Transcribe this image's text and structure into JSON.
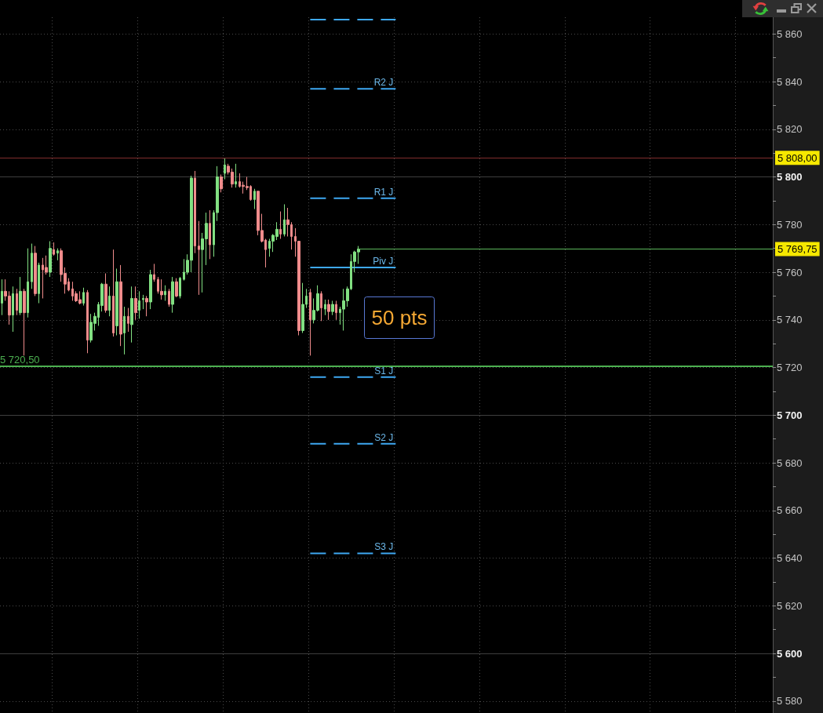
{
  "chart_data": {
    "type": "candlestick",
    "categories": [
      null,
      null,
      null,
      null,
      null,
      null,
      null,
      null,
      null,
      null,
      null,
      null,
      null,
      null,
      null,
      null,
      null,
      null,
      null,
      null,
      null,
      null,
      null,
      null,
      null,
      null,
      null,
      null,
      null,
      null,
      null,
      null,
      null,
      null,
      null,
      null,
      null,
      null,
      null,
      null,
      null,
      null,
      null,
      null,
      null,
      null,
      null,
      null,
      null,
      null,
      null,
      null,
      null,
      null,
      null,
      null,
      null,
      null,
      null,
      null,
      null,
      null,
      null,
      null,
      null,
      null,
      null,
      null,
      null,
      null,
      null,
      null,
      null,
      null,
      null,
      null,
      null,
      null,
      null,
      null,
      null,
      null,
      null,
      null,
      null,
      null,
      null,
      null,
      null,
      null,
      null,
      null,
      null,
      null,
      null,
      null,
      null,
      null,
      null,
      null,
      null,
      null,
      null,
      null,
      null,
      null,
      null,
      null,
      null,
      null,
      null,
      null,
      null,
      null,
      null,
      null,
      null,
      null,
      null,
      null,
      null,
      null,
      null,
      null,
      null,
      null,
      null,
      null,
      null,
      null,
      null,
      null,
      null,
      null,
      null,
      null,
      null,
      null,
      null,
      null,
      null,
      null,
      null,
      null,
      null,
      null,
      null,
      null,
      null,
      null,
      null,
      null,
      null,
      null,
      null,
      null,
      null,
      null,
      null,
      null,
      null,
      null,
      null,
      null,
      null,
      null,
      null,
      null,
      null,
      null,
      null,
      null,
      null,
      null,
      null,
      null,
      null,
      null,
      null,
      null,
      null,
      null,
      null,
      null,
      null,
      null,
      null,
      null,
      null,
      null,
      null,
      null,
      null,
      null,
      null,
      null,
      null,
      null,
      null,
      null,
      null,
      null,
      null,
      null,
      null,
      null,
      null,
      null
    ],
    "ohlc": [
      [
        5747,
        5757,
        5742,
        5752
      ],
      [
        5752,
        5757,
        5748,
        5750
      ],
      [
        5750,
        5752,
        5738,
        5742
      ],
      [
        5742,
        5754,
        5735,
        5751
      ],
      [
        5751,
        5753,
        5742,
        5744
      ],
      [
        5743,
        5758,
        5742,
        5752
      ],
      [
        5752,
        5753,
        5725,
        5743
      ],
      [
        5743,
        5770,
        5741,
        5756
      ],
      [
        5756,
        5772,
        5753,
        5768
      ],
      [
        5768,
        5771,
        5750,
        5751
      ],
      [
        5751,
        5764,
        5747,
        5763
      ],
      [
        5763,
        5766,
        5749,
        5761
      ],
      [
        5762,
        5767,
        5759,
        5760
      ],
      [
        5760,
        5773,
        5758,
        5770
      ],
      [
        5769.5,
        5772.5,
        5767,
        5767.5
      ],
      [
        5768,
        5770,
        5765,
        5769
      ],
      [
        5769,
        5770,
        5756,
        5759
      ],
      [
        5759.5,
        5762,
        5751,
        5755
      ],
      [
        5756,
        5757.5,
        5752,
        5752.5
      ],
      [
        5753,
        5756,
        5748,
        5750
      ],
      [
        5751,
        5752,
        5747.5,
        5748
      ],
      [
        5748.5,
        5752,
        5746.5,
        5747
      ],
      [
        5747,
        5753.5,
        5746,
        5751.5
      ],
      [
        5751.5,
        5752.5,
        5726,
        5731.5
      ],
      [
        5731.5,
        5742.5,
        5730.5,
        5739
      ],
      [
        5738.5,
        5743,
        5735.5,
        5741.5
      ],
      [
        5741,
        5747.5,
        5737.5,
        5746.5
      ],
      [
        5746,
        5755.5,
        5743.5,
        5755
      ],
      [
        5755,
        5759.5,
        5743,
        5744
      ],
      [
        5744,
        5754,
        5741.5,
        5750
      ],
      [
        5750,
        5769.5,
        5733,
        5734.5
      ],
      [
        5737.5,
        5761.5,
        5733.5,
        5756
      ],
      [
        5756,
        5763,
        5729,
        5734
      ],
      [
        5734.5,
        5745.5,
        5725.5,
        5741.5
      ],
      [
        5741.5,
        5745,
        5735,
        5738.5
      ],
      [
        5738,
        5754,
        5730.5,
        5749
      ],
      [
        5749,
        5754,
        5740,
        5743
      ],
      [
        5744,
        5752,
        5740.5,
        5748
      ],
      [
        5748.5,
        5750.5,
        5744.5,
        5749
      ],
      [
        5749,
        5750,
        5741.5,
        5747.5
      ],
      [
        5747.5,
        5761,
        5744.5,
        5759
      ],
      [
        5759,
        5763.5,
        5756,
        5757
      ],
      [
        5757,
        5758,
        5751,
        5752
      ],
      [
        5752,
        5757,
        5748.5,
        5750.5
      ],
      [
        5750.5,
        5754.5,
        5748,
        5752
      ],
      [
        5752,
        5753,
        5745.5,
        5746.5
      ],
      [
        5746.5,
        5758,
        5743,
        5756
      ],
      [
        5756,
        5757.5,
        5749.5,
        5750
      ],
      [
        5750,
        5758,
        5749,
        5757.5
      ],
      [
        5757,
        5765.5,
        5756.5,
        5760
      ],
      [
        5760,
        5767.5,
        5759,
        5765
      ],
      [
        5765,
        5800.5,
        5760,
        5799.5
      ],
      [
        5799.5,
        5802.5,
        5768,
        5771
      ],
      [
        5771,
        5781.5,
        5750.5,
        5769.5
      ],
      [
        5769.5,
        5776.5,
        5751.5,
        5774
      ],
      [
        5774,
        5785,
        5763,
        5780.5
      ],
      [
        5780.5,
        5786,
        5765.5,
        5771.5
      ],
      [
        5771.5,
        5786,
        5766.5,
        5785
      ],
      [
        5785,
        5804.5,
        5781.5,
        5800
      ],
      [
        5800,
        5801,
        5793.5,
        5795
      ],
      [
        5801.5,
        5808,
        5799,
        5805
      ],
      [
        5804.5,
        5805.5,
        5801,
        5802
      ],
      [
        5802,
        5803.5,
        5795.5,
        5797
      ],
      [
        5797,
        5805.5,
        5795.5,
        5798
      ],
      [
        5798,
        5801.5,
        5795.5,
        5796
      ],
      [
        5796.5,
        5798,
        5793,
        5796
      ],
      [
        5796,
        5800,
        5794.5,
        5795.5
      ],
      [
        5796,
        5796.5,
        5790,
        5790.5
      ],
      [
        5790.5,
        5795,
        5786.5,
        5794
      ],
      [
        5794,
        5794,
        5775.5,
        5777.5
      ],
      [
        5777.5,
        5784.5,
        5772.5,
        5773
      ],
      [
        5773.5,
        5774,
        5762,
        5769.5
      ],
      [
        5770,
        5774,
        5766.5,
        5773
      ],
      [
        5773,
        5776,
        5768.5,
        5775.5
      ],
      [
        5775,
        5781,
        5773.5,
        5778
      ],
      [
        5778,
        5785.5,
        5774,
        5776
      ],
      [
        5776,
        5788.5,
        5775,
        5782
      ],
      [
        5782,
        5787,
        5775,
        5780
      ],
      [
        5780,
        5781,
        5769.5,
        5775
      ],
      [
        5775,
        5778.5,
        5766.5,
        5773
      ],
      [
        5773,
        5773,
        5733.5,
        5735.5
      ],
      [
        5735.5,
        5755.5,
        5734.5,
        5746.5
      ],
      [
        5746.5,
        5753,
        5745,
        5750
      ],
      [
        5751.5,
        5753,
        5725,
        5740
      ],
      [
        5740,
        5749,
        5738.5,
        5744
      ],
      [
        5744,
        5754.5,
        5743.5,
        5751
      ],
      [
        5751,
        5752,
        5739.5,
        5745
      ],
      [
        5744.5,
        5748.5,
        5742,
        5746.5
      ],
      [
        5746.5,
        5748.5,
        5740,
        5743.5
      ],
      [
        5743.5,
        5748,
        5742,
        5746.5
      ],
      [
        5746.5,
        5748,
        5740,
        5743
      ],
      [
        5743,
        5745.5,
        5738,
        5744.5
      ],
      [
        5744.5,
        5753,
        5735.5,
        5748
      ],
      [
        5748,
        5754,
        5745.5,
        5753
      ],
      [
        5753,
        5767.5,
        5752.5,
        5764.5
      ],
      [
        5764.5,
        5769,
        5760,
        5768.5
      ],
      [
        5768.5,
        5771,
        5763.5,
        5769.75
      ],
      null,
      null,
      null,
      null,
      null,
      null,
      null,
      null,
      null,
      null,
      null,
      null,
      null,
      null,
      null,
      null,
      null,
      null,
      null,
      null,
      null,
      null,
      null,
      null,
      null,
      null,
      null,
      null,
      null,
      null,
      null,
      null,
      null,
      null,
      null,
      null,
      null,
      null,
      null,
      null,
      null,
      null,
      null,
      null,
      null,
      null,
      null,
      null,
      null,
      null,
      null,
      null,
      null,
      null,
      null,
      null,
      null,
      null,
      null,
      null,
      null,
      null,
      null,
      null,
      null,
      null,
      null,
      null,
      null,
      null,
      null,
      null,
      null,
      null,
      null,
      null,
      null,
      null,
      null,
      null,
      null,
      null,
      null,
      null,
      null,
      null,
      null,
      null,
      null,
      null,
      null,
      null,
      null,
      null,
      null,
      null,
      null,
      null,
      null,
      null,
      null,
      null,
      null,
      null,
      null,
      null,
      null,
      null,
      null,
      null,
      null
    ],
    "series": [
      {
        "type": "line",
        "color": "#3ea8f2",
        "line_style": "dashed",
        "values": [
          null,
          null,
          null,
          null,
          null,
          null,
          null,
          null,
          null,
          null,
          null,
          null,
          null,
          null,
          null,
          null,
          null,
          null,
          null,
          null,
          null,
          null,
          null,
          null,
          null,
          null,
          null,
          null,
          null,
          null,
          null,
          null,
          null,
          null,
          null,
          null,
          null,
          null,
          null,
          null,
          null,
          null,
          null,
          null,
          null,
          null,
          null,
          null,
          null,
          null,
          null,
          null,
          null,
          null,
          null,
          null,
          null,
          null,
          null,
          null,
          null,
          null,
          null,
          null,
          null,
          null,
          null,
          null,
          null,
          null,
          null,
          null,
          null,
          null,
          null,
          null,
          null,
          null,
          null,
          null,
          null,
          null,
          null,
          5866,
          5866,
          5866,
          5866,
          5866,
          5866,
          5866,
          5866,
          5866,
          5866,
          5866,
          5866,
          5866,
          5866,
          5866,
          5866,
          5866,
          5866,
          5866,
          5866,
          5866,
          5866,
          5866,
          5866,
          null,
          null,
          null,
          null,
          null,
          null,
          null,
          null,
          null,
          null,
          null,
          null,
          null,
          null,
          null,
          null,
          null,
          null,
          null,
          null,
          null,
          null,
          null,
          null,
          null,
          null,
          null,
          null,
          null,
          null,
          null,
          null,
          null,
          null,
          null,
          null,
          null,
          null,
          null,
          null,
          null,
          null,
          null,
          null,
          null,
          null,
          null,
          null,
          null,
          null,
          null,
          null,
          null,
          null,
          null,
          null,
          null,
          null,
          null,
          null,
          null,
          null,
          null,
          null,
          null,
          null,
          null,
          null,
          null,
          null,
          null,
          null,
          null,
          null,
          null,
          null,
          null,
          null,
          null,
          null,
          null,
          null,
          null,
          null,
          null,
          null,
          null,
          null,
          null,
          null,
          null,
          null,
          null,
          null,
          null,
          null,
          null,
          null,
          null,
          null,
          null
        ]
      },
      {
        "type": "line",
        "name": "R2 J",
        "color": "#3ea8f2",
        "line_style": "dashed",
        "values": [
          null,
          null,
          null,
          null,
          null,
          null,
          null,
          null,
          null,
          null,
          null,
          null,
          null,
          null,
          null,
          null,
          null,
          null,
          null,
          null,
          null,
          null,
          null,
          null,
          null,
          null,
          null,
          null,
          null,
          null,
          null,
          null,
          null,
          null,
          null,
          null,
          null,
          null,
          null,
          null,
          null,
          null,
          null,
          null,
          null,
          null,
          null,
          null,
          null,
          null,
          null,
          null,
          null,
          null,
          null,
          null,
          null,
          null,
          null,
          null,
          null,
          null,
          null,
          null,
          null,
          null,
          null,
          null,
          null,
          null,
          null,
          null,
          null,
          null,
          null,
          null,
          null,
          null,
          null,
          null,
          null,
          null,
          null,
          5837,
          5837,
          5837,
          5837,
          5837,
          5837,
          5837,
          5837,
          5837,
          5837,
          5837,
          5837,
          5837,
          5837,
          5837,
          5837,
          5837,
          5837,
          5837,
          5837,
          5837,
          5837,
          5837,
          5837,
          null,
          null,
          null,
          null,
          null,
          null,
          null,
          null,
          null,
          null,
          null,
          null,
          null,
          null,
          null,
          null,
          null,
          null,
          null,
          null,
          null,
          null,
          null,
          null,
          null,
          null,
          null,
          null,
          null,
          null,
          null,
          null,
          null,
          null,
          null,
          null,
          null,
          null,
          null,
          null,
          null,
          null,
          null,
          null,
          null,
          null,
          null,
          null,
          null,
          null,
          null,
          null,
          null,
          null,
          null,
          null,
          null,
          null,
          null,
          null,
          null,
          null,
          null,
          null,
          null,
          null,
          null,
          null,
          null,
          null,
          null,
          null,
          null,
          null,
          null,
          null,
          null,
          null,
          null,
          null,
          null,
          null,
          null,
          null,
          null,
          null,
          null,
          null,
          null,
          null,
          null,
          null,
          null,
          null,
          null,
          null,
          null,
          null,
          null,
          null,
          null
        ]
      },
      {
        "type": "line",
        "name": "R1 J",
        "color": "#3ea8f2",
        "line_style": "dashed",
        "values": [
          null,
          null,
          null,
          null,
          null,
          null,
          null,
          null,
          null,
          null,
          null,
          null,
          null,
          null,
          null,
          null,
          null,
          null,
          null,
          null,
          null,
          null,
          null,
          null,
          null,
          null,
          null,
          null,
          null,
          null,
          null,
          null,
          null,
          null,
          null,
          null,
          null,
          null,
          null,
          null,
          null,
          null,
          null,
          null,
          null,
          null,
          null,
          null,
          null,
          null,
          null,
          null,
          null,
          null,
          null,
          null,
          null,
          null,
          null,
          null,
          null,
          null,
          null,
          null,
          null,
          null,
          null,
          null,
          null,
          null,
          null,
          null,
          null,
          null,
          null,
          null,
          null,
          null,
          null,
          null,
          null,
          null,
          null,
          5791,
          5791,
          5791,
          5791,
          5791,
          5791,
          5791,
          5791,
          5791,
          5791,
          5791,
          5791,
          5791,
          5791,
          5791,
          5791,
          5791,
          5791,
          5791,
          5791,
          5791,
          5791,
          5791,
          5791,
          null,
          null,
          null,
          null,
          null,
          null,
          null,
          null,
          null,
          null,
          null,
          null,
          null,
          null,
          null,
          null,
          null,
          null,
          null,
          null,
          null,
          null,
          null,
          null,
          null,
          null,
          null,
          null,
          null,
          null,
          null,
          null,
          null,
          null,
          null,
          null,
          null,
          null,
          null,
          null,
          null,
          null,
          null,
          null,
          null,
          null,
          null,
          null,
          null,
          null,
          null,
          null,
          null,
          null,
          null,
          null,
          null,
          null,
          null,
          null,
          null,
          null,
          null,
          null,
          null,
          null,
          null,
          null,
          null,
          null,
          null,
          null,
          null,
          null,
          null,
          null,
          null,
          null,
          null,
          null,
          null,
          null,
          null,
          null,
          null,
          null,
          null,
          null,
          null,
          null,
          null,
          null,
          null,
          null,
          null,
          null,
          null,
          null,
          null,
          null,
          null
        ]
      },
      {
        "type": "line",
        "name": "Piv J",
        "color": "#3ea8f2",
        "values": [
          null,
          null,
          null,
          null,
          null,
          null,
          null,
          null,
          null,
          null,
          null,
          null,
          null,
          null,
          null,
          null,
          null,
          null,
          null,
          null,
          null,
          null,
          null,
          null,
          null,
          null,
          null,
          null,
          null,
          null,
          null,
          null,
          null,
          null,
          null,
          null,
          null,
          null,
          null,
          null,
          null,
          null,
          null,
          null,
          null,
          null,
          null,
          null,
          null,
          null,
          null,
          null,
          null,
          null,
          null,
          null,
          null,
          null,
          null,
          null,
          null,
          null,
          null,
          null,
          null,
          null,
          null,
          null,
          null,
          null,
          null,
          null,
          null,
          null,
          null,
          null,
          null,
          null,
          null,
          null,
          null,
          null,
          null,
          5762,
          5762,
          5762,
          5762,
          5762,
          5762,
          5762,
          5762,
          5762,
          5762,
          5762,
          5762,
          5762,
          5762,
          5762,
          5762,
          5762,
          5762,
          5762,
          5762,
          5762,
          5762,
          5762,
          5762,
          null,
          null,
          null,
          null,
          null,
          null,
          null,
          null,
          null,
          null,
          null,
          null,
          null,
          null,
          null,
          null,
          null,
          null,
          null,
          null,
          null,
          null,
          null,
          null,
          null,
          null,
          null,
          null,
          null,
          null,
          null,
          null,
          null,
          null,
          null,
          null,
          null,
          null,
          null,
          null,
          null,
          null,
          null,
          null,
          null,
          null,
          null,
          null,
          null,
          null,
          null,
          null,
          null,
          null,
          null,
          null,
          null,
          null,
          null,
          null,
          null,
          null,
          null,
          null,
          null,
          null,
          null,
          null,
          null,
          null,
          null,
          null,
          null,
          null,
          null,
          null,
          null,
          null,
          null,
          null,
          null,
          null,
          null,
          null,
          null,
          null,
          null,
          null,
          null,
          null,
          null,
          null,
          null,
          null,
          null,
          null,
          null,
          null,
          null,
          null,
          null
        ]
      },
      {
        "type": "line",
        "name": "S1 J",
        "color": "#3ea8f2",
        "line_style": "dashed",
        "values": [
          null,
          null,
          null,
          null,
          null,
          null,
          null,
          null,
          null,
          null,
          null,
          null,
          null,
          null,
          null,
          null,
          null,
          null,
          null,
          null,
          null,
          null,
          null,
          null,
          null,
          null,
          null,
          null,
          null,
          null,
          null,
          null,
          null,
          null,
          null,
          null,
          null,
          null,
          null,
          null,
          null,
          null,
          null,
          null,
          null,
          null,
          null,
          null,
          null,
          null,
          null,
          null,
          null,
          null,
          null,
          null,
          null,
          null,
          null,
          null,
          null,
          null,
          null,
          null,
          null,
          null,
          null,
          null,
          null,
          null,
          null,
          null,
          null,
          null,
          null,
          null,
          null,
          null,
          null,
          null,
          null,
          null,
          null,
          5716,
          5716,
          5716,
          5716,
          5716,
          5716,
          5716,
          5716,
          5716,
          5716,
          5716,
          5716,
          5716,
          5716,
          5716,
          5716,
          5716,
          5716,
          5716,
          5716,
          5716,
          5716,
          5716,
          5716,
          null,
          null,
          null,
          null,
          null,
          null,
          null,
          null,
          null,
          null,
          null,
          null,
          null,
          null,
          null,
          null,
          null,
          null,
          null,
          null,
          null,
          null,
          null,
          null,
          null,
          null,
          null,
          null,
          null,
          null,
          null,
          null,
          null,
          null,
          null,
          null,
          null,
          null,
          null,
          null,
          null,
          null,
          null,
          null,
          null,
          null,
          null,
          null,
          null,
          null,
          null,
          null,
          null,
          null,
          null,
          null,
          null,
          null,
          null,
          null,
          null,
          null,
          null,
          null,
          null,
          null,
          null,
          null,
          null,
          null,
          null,
          null,
          null,
          null,
          null,
          null,
          null,
          null,
          null,
          null,
          null,
          null,
          null,
          null,
          null,
          null,
          null,
          null,
          null,
          null,
          null,
          null,
          null,
          null,
          null,
          null,
          null,
          null,
          null,
          null,
          null
        ]
      },
      {
        "type": "line",
        "name": "S2 J",
        "color": "#3ea8f2",
        "line_style": "dashed",
        "values": [
          null,
          null,
          null,
          null,
          null,
          null,
          null,
          null,
          null,
          null,
          null,
          null,
          null,
          null,
          null,
          null,
          null,
          null,
          null,
          null,
          null,
          null,
          null,
          null,
          null,
          null,
          null,
          null,
          null,
          null,
          null,
          null,
          null,
          null,
          null,
          null,
          null,
          null,
          null,
          null,
          null,
          null,
          null,
          null,
          null,
          null,
          null,
          null,
          null,
          null,
          null,
          null,
          null,
          null,
          null,
          null,
          null,
          null,
          null,
          null,
          null,
          null,
          null,
          null,
          null,
          null,
          null,
          null,
          null,
          null,
          null,
          null,
          null,
          null,
          null,
          null,
          null,
          null,
          null,
          null,
          null,
          null,
          null,
          5688,
          5688,
          5688,
          5688,
          5688,
          5688,
          5688,
          5688,
          5688,
          5688,
          5688,
          5688,
          5688,
          5688,
          5688,
          5688,
          5688,
          5688,
          5688,
          5688,
          5688,
          5688,
          5688,
          5688,
          null,
          null,
          null,
          null,
          null,
          null,
          null,
          null,
          null,
          null,
          null,
          null,
          null,
          null,
          null,
          null,
          null,
          null,
          null,
          null,
          null,
          null,
          null,
          null,
          null,
          null,
          null,
          null,
          null,
          null,
          null,
          null,
          null,
          null,
          null,
          null,
          null,
          null,
          null,
          null,
          null,
          null,
          null,
          null,
          null,
          null,
          null,
          null,
          null,
          null,
          null,
          null,
          null,
          null,
          null,
          null,
          null,
          null,
          null,
          null,
          null,
          null,
          null,
          null,
          null,
          null,
          null,
          null,
          null,
          null,
          null,
          null,
          null,
          null,
          null,
          null,
          null,
          null,
          null,
          null,
          null,
          null,
          null,
          null,
          null,
          null,
          null,
          null,
          null,
          null,
          null,
          null,
          null,
          null,
          null,
          null,
          null,
          null,
          null,
          null,
          null
        ]
      },
      {
        "type": "line",
        "name": "S3 J",
        "color": "#3ea8f2",
        "line_style": "dashed",
        "values": [
          null,
          null,
          null,
          null,
          null,
          null,
          null,
          null,
          null,
          null,
          null,
          null,
          null,
          null,
          null,
          null,
          null,
          null,
          null,
          null,
          null,
          null,
          null,
          null,
          null,
          null,
          null,
          null,
          null,
          null,
          null,
          null,
          null,
          null,
          null,
          null,
          null,
          null,
          null,
          null,
          null,
          null,
          null,
          null,
          null,
          null,
          null,
          null,
          null,
          null,
          null,
          null,
          null,
          null,
          null,
          null,
          null,
          null,
          null,
          null,
          null,
          null,
          null,
          null,
          null,
          null,
          null,
          null,
          null,
          null,
          null,
          null,
          null,
          null,
          null,
          null,
          null,
          null,
          null,
          null,
          null,
          null,
          null,
          5642,
          5642,
          5642,
          5642,
          5642,
          5642,
          5642,
          5642,
          5642,
          5642,
          5642,
          5642,
          5642,
          5642,
          5642,
          5642,
          5642,
          5642,
          5642,
          5642,
          5642,
          5642,
          5642,
          5642,
          null,
          null,
          null,
          null,
          null,
          null,
          null,
          null,
          null,
          null,
          null,
          null,
          null,
          null,
          null,
          null,
          null,
          null,
          null,
          null,
          null,
          null,
          null,
          null,
          null,
          null,
          null,
          null,
          null,
          null,
          null,
          null,
          null,
          null,
          null,
          null,
          null,
          null,
          null,
          null,
          null,
          null,
          null,
          null,
          null,
          null,
          null,
          null,
          null,
          null,
          null,
          null,
          null,
          null,
          null,
          null,
          null,
          null,
          null,
          null,
          null,
          null,
          null,
          null,
          null,
          null,
          null,
          null,
          null,
          null,
          null,
          null,
          null,
          null,
          null,
          null,
          null,
          null,
          null,
          null,
          null,
          null,
          null,
          null,
          null,
          null,
          null,
          null,
          null,
          null,
          null,
          null,
          null,
          null,
          null,
          null,
          null,
          null,
          null,
          null,
          null
        ]
      }
    ],
    "ylim": [
      5575,
      5867
    ],
    "yticks": [
      {
        "value": 5580,
        "label": "5 580"
      },
      {
        "value": 5590,
        "label": null
      },
      {
        "value": 5600,
        "label": "5 600"
      },
      {
        "value": 5610,
        "label": null
      },
      {
        "value": 5620,
        "label": "5 620"
      },
      {
        "value": 5630,
        "label": null
      },
      {
        "value": 5640,
        "label": "5 640"
      },
      {
        "value": 5650,
        "label": null
      },
      {
        "value": 5660,
        "label": "5 660"
      },
      {
        "value": 5670,
        "label": null
      },
      {
        "value": 5680,
        "label": "5 680"
      },
      {
        "value": 5690,
        "label": null
      },
      {
        "value": 5700,
        "label": "5 700"
      },
      {
        "value": 5710,
        "label": null
      },
      {
        "value": 5720,
        "label": "5 720"
      },
      {
        "value": 5730,
        "label": null
      },
      {
        "value": 5740,
        "label": "5 740"
      },
      {
        "value": 5750,
        "label": null
      },
      {
        "value": 5760,
        "label": "5 760"
      },
      {
        "value": 5770,
        "label": null
      },
      {
        "value": 5780,
        "label": "5 780"
      },
      {
        "value": 5790,
        "label": null
      },
      {
        "value": 5800,
        "label": "5 800"
      },
      {
        "value": 5810,
        "label": null
      },
      {
        "value": 5820,
        "label": "5 820"
      },
      {
        "value": 5830,
        "label": null
      },
      {
        "value": 5840,
        "label": "5 840"
      },
      {
        "value": 5850,
        "label": null
      },
      {
        "value": 5860,
        "label": "5 860"
      }
    ],
    "ref_lines": [
      {
        "axis": "y",
        "value": 5808,
        "label": "5 808,00",
        "color": "#802c2c"
      },
      {
        "axis": "y",
        "value": 5769.75,
        "label": "5 769,75",
        "color": "#5cb85c"
      },
      {
        "axis": "y",
        "value": 5720.5,
        "color": "#4caf50"
      }
    ],
    "annotations": [
      {
        "text": "5 720,50",
        "y": 5720.5
      },
      "50 pts"
    ],
    "grid": true,
    "tick_labels": "y"
  }
}
